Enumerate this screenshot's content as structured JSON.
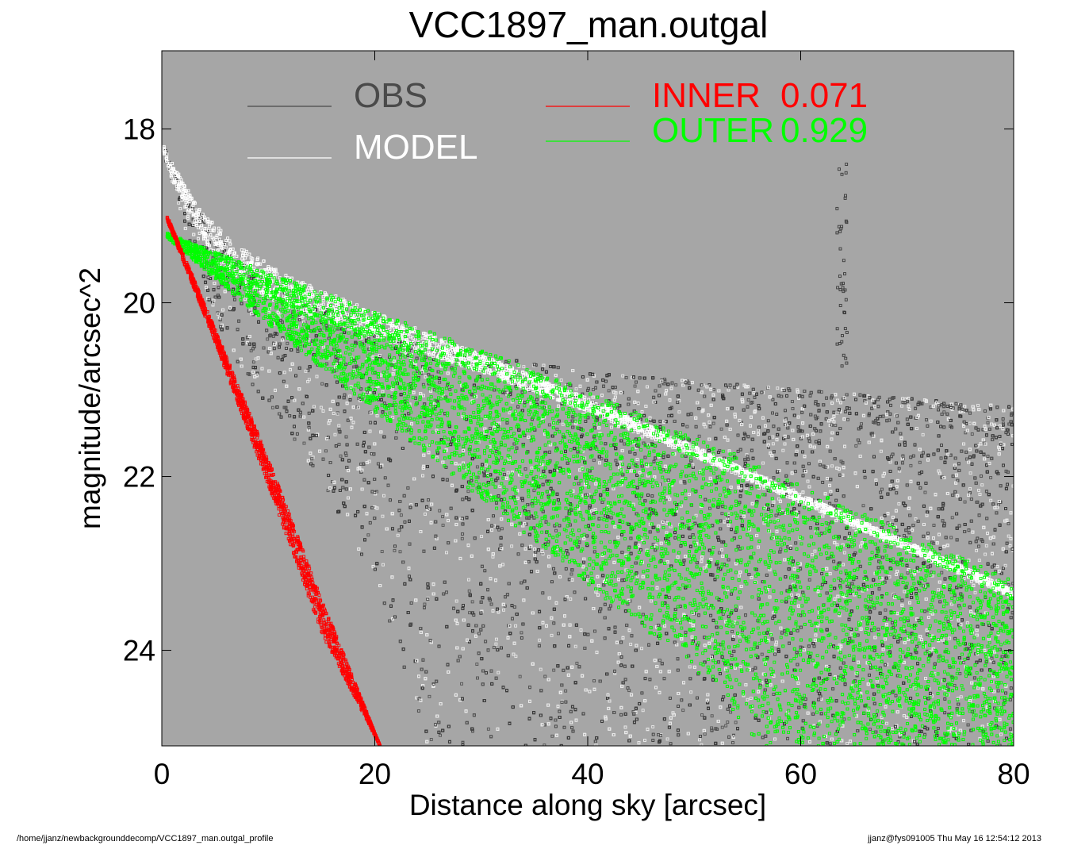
{
  "title": "VCC1897_man.outgal",
  "footer": {
    "left": "/home/jjanz/newbackgrounddecomp/VCC1897_man.outgal_profile",
    "right": "jjanz@fys091005  Thu May 16 12:54:12 2013"
  },
  "colors": {
    "plot_background": "#a6a6a6",
    "obs": "#4a4a4a",
    "model": "#ffffff",
    "inner": "#ff0000",
    "outer": "#00ff00"
  },
  "chart_data": {
    "type": "scatter",
    "title": "VCC1897_man.outgal",
    "xlabel": "Distance along sky [arcsec]",
    "ylabel": "magnitude/arcsec^2",
    "xlim": [
      0,
      80
    ],
    "ylim": [
      25.1,
      17.1
    ],
    "y_inverted": true,
    "xticks": [
      0,
      20,
      40,
      60,
      80
    ],
    "xtick_labels": [
      "0",
      "20",
      "40",
      "60",
      "80"
    ],
    "yticks": [
      18,
      20,
      22,
      24
    ],
    "ytick_labels": [
      "18",
      "20",
      "22",
      "24"
    ],
    "grid": false,
    "legend_position": "top",
    "legend": [
      {
        "label": "OBS",
        "value": "",
        "color": "#4a4a4a",
        "column": "left"
      },
      {
        "label": "MODEL",
        "value": "",
        "color": "#ffffff",
        "column": "left"
      },
      {
        "label": "INNER",
        "value": "0.071",
        "color": "#ff0000",
        "column": "right"
      },
      {
        "label": "OUTER",
        "value": "0.929",
        "color": "#00ff00",
        "column": "right"
      }
    ],
    "series": [
      {
        "name": "OBS",
        "style": "scatter-cloud",
        "x": [
          0.2,
          2,
          5,
          8,
          12,
          16,
          20,
          25,
          30,
          40,
          50,
          60,
          70,
          80
        ],
        "y_bright_edge": [
          18.2,
          18.7,
          19.2,
          19.6,
          19.9,
          20.1,
          20.3,
          20.5,
          20.6,
          20.8,
          20.9,
          21.0,
          21.1,
          21.2
        ],
        "y_faint_edge": [
          18.3,
          19.1,
          20.2,
          20.9,
          21.5,
          22.3,
          23.2,
          25.1,
          25.1,
          25.1,
          25.1,
          25.1,
          25.1,
          25.1
        ]
      },
      {
        "name": "OBS-feature",
        "style": "vertical-streak",
        "x": [
          63.5,
          64.2,
          63.8,
          63.6
        ],
        "y": [
          18.4,
          18.9,
          19.5,
          20.8
        ]
      },
      {
        "name": "MODEL",
        "style": "band",
        "x": [
          0.2,
          1,
          2,
          3,
          4,
          5,
          6,
          8,
          10,
          12,
          15,
          20,
          30,
          40,
          60,
          80
        ],
        "y_upper": [
          18.2,
          18.4,
          18.6,
          18.8,
          19.0,
          19.1,
          19.2,
          19.4,
          19.55,
          19.7,
          19.85,
          20.1,
          20.6,
          21.1,
          22.2,
          23.3
        ],
        "y_lower": [
          18.3,
          18.6,
          18.85,
          19.1,
          19.3,
          19.45,
          19.6,
          19.8,
          19.95,
          20.05,
          20.2,
          20.4,
          20.8,
          21.25,
          22.3,
          23.4
        ]
      },
      {
        "name": "INNER",
        "style": "band",
        "x": [
          0.5,
          5,
          10,
          15,
          20.5
        ],
        "y_upper": [
          19.0,
          20.3,
          21.8,
          23.4,
          25.1
        ],
        "y_lower": [
          19.05,
          20.45,
          22.1,
          23.8,
          25.1
        ],
        "fraction": 0.071
      },
      {
        "name": "OUTER",
        "style": "band",
        "x": [
          0.5,
          10,
          20,
          30,
          40,
          50,
          56,
          60,
          70,
          80
        ],
        "y_upper": [
          19.2,
          19.65,
          20.1,
          20.55,
          21.0,
          21.55,
          21.85,
          22.1,
          22.65,
          23.2
        ],
        "y_lower": [
          19.25,
          20.25,
          21.25,
          22.25,
          23.25,
          24.2,
          25.1,
          25.1,
          25.1,
          25.1
        ],
        "fraction": 0.929
      }
    ]
  }
}
